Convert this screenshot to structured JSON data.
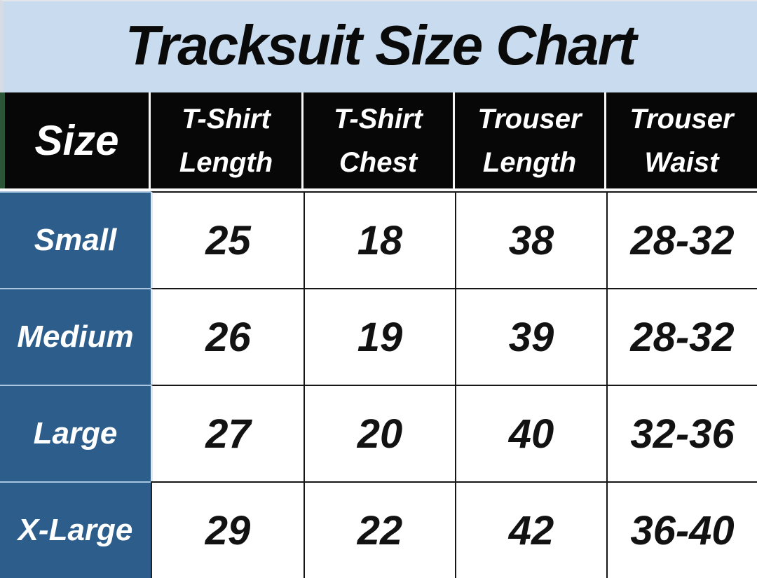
{
  "title": "Tracksuit Size Chart",
  "colors": {
    "title_bg": "#c9dbef",
    "title_text": "#0a0a0a",
    "header_bg": "#070707",
    "header_text": "#ffffff",
    "size_cell_bg": "#2d5e8b",
    "size_cell_text": "#ffffff",
    "value_cell_bg": "#ffffff",
    "value_text": "#121212",
    "grid_line": "#161616",
    "green_edge": "#2a5536"
  },
  "header": {
    "size": "Size",
    "cols": [
      {
        "line1": "T-Shirt",
        "line2": "Length"
      },
      {
        "line1": "T-Shirt",
        "line2": "Chest"
      },
      {
        "line1": "Trouser",
        "line2": "Length"
      },
      {
        "line1": "Trouser",
        "line2": "Waist"
      }
    ]
  },
  "rows": [
    {
      "size": "Small",
      "values": [
        "25",
        "18",
        "38",
        "28-32"
      ]
    },
    {
      "size": "Medium",
      "values": [
        "26",
        "19",
        "39",
        "28-32"
      ]
    },
    {
      "size": "Large",
      "values": [
        "27",
        "20",
        "40",
        "32-36"
      ]
    },
    {
      "size": "X-Large",
      "values": [
        "29",
        "22",
        "42",
        "36-40"
      ]
    }
  ],
  "chart_data": {
    "type": "table",
    "title": "Tracksuit Size Chart",
    "columns": [
      "Size",
      "T-Shirt Length",
      "T-Shirt Chest",
      "Trouser Length",
      "Trouser Waist"
    ],
    "rows": [
      [
        "Small",
        "25",
        "18",
        "38",
        "28-32"
      ],
      [
        "Medium",
        "26",
        "19",
        "39",
        "28-32"
      ],
      [
        "Large",
        "27",
        "20",
        "40",
        "32-36"
      ],
      [
        "X-Large",
        "29",
        "22",
        "42",
        "36-40"
      ]
    ]
  }
}
